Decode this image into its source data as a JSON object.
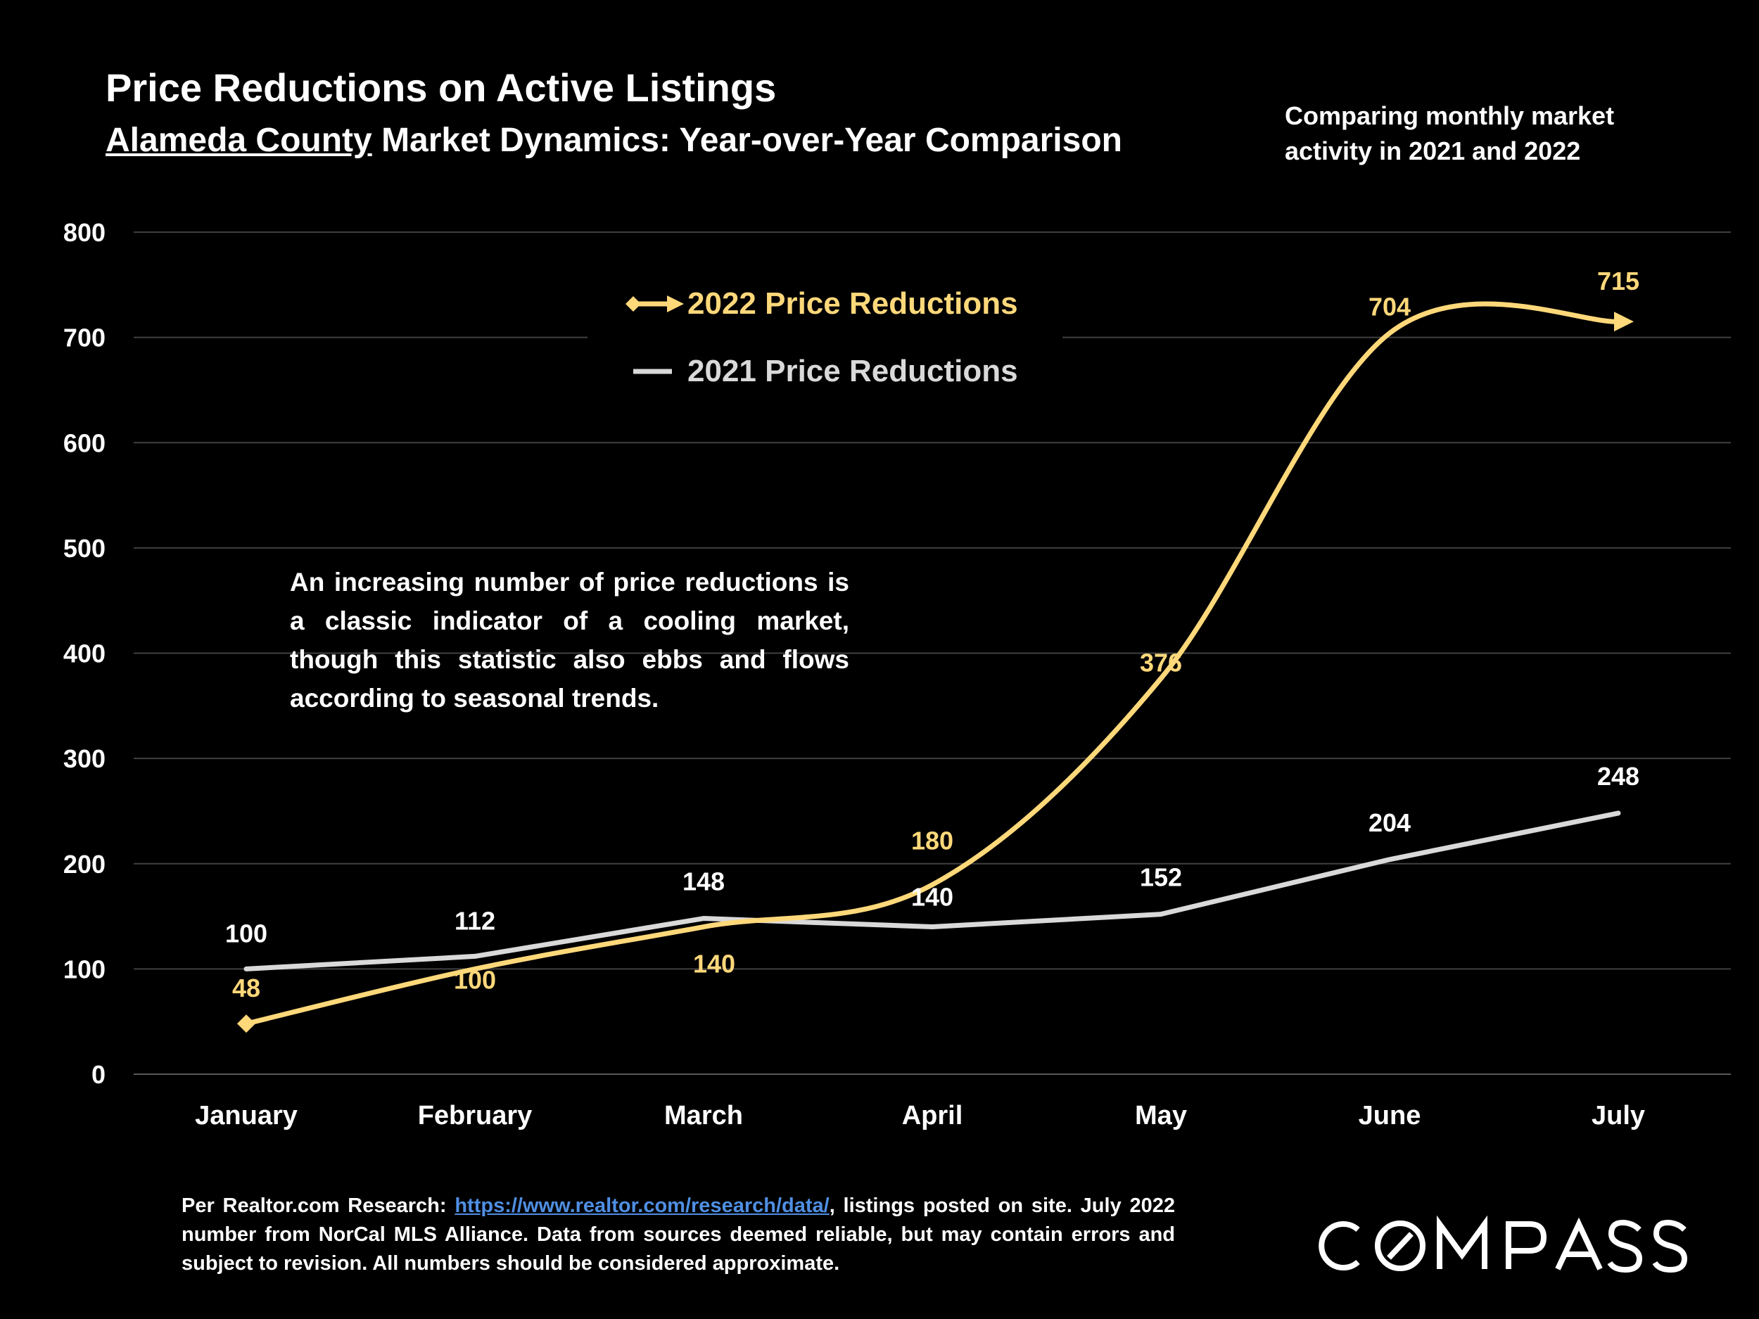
{
  "header": {
    "title": "Price Reductions on Active Listings",
    "subtitle_county": "Alameda County",
    "subtitle_rest": " Market Dynamics: Year-over-Year Comparison",
    "note": "Comparing monthly market activity in 2021 and 2022"
  },
  "annotation": "An increasing number of price reductions is a classic indicator of a cooling market, though this statistic also ebbs and flows according to seasonal trends.",
  "footer": {
    "prefix": "Per Realtor.com Research: ",
    "link": "https://www.realtor.com/research/data/",
    "suffix": ", listings posted on site. July 2022 number from NorCal MLS Alliance. Data from sources deemed reliable, but may contain errors and subject to revision. All numbers should be considered approximate."
  },
  "logo": {
    "text": "COMPASS"
  },
  "colors": {
    "series_2022": "#ffd87a",
    "series_2021": "#d9d9d9",
    "gridline": "#404040",
    "link": "#4f8fe3"
  },
  "chart_data": {
    "type": "line",
    "categories": [
      "January",
      "February",
      "March",
      "April",
      "May",
      "June",
      "July"
    ],
    "ylim": [
      0,
      800
    ],
    "yticks": [
      0,
      100,
      200,
      300,
      400,
      500,
      600,
      700,
      800
    ],
    "grid": true,
    "legend_position": "top-center",
    "series": [
      {
        "name": "2022 Price Reductions",
        "values": [
          48,
          100,
          140,
          180,
          376,
          704,
          715
        ],
        "color": "#ffd87a",
        "markers": "diamond-start-arrow-end",
        "smooth": true
      },
      {
        "name": "2021 Price Reductions",
        "values": [
          100,
          112,
          148,
          140,
          152,
          204,
          248
        ],
        "color": "#d9d9d9",
        "smooth": false
      }
    ]
  }
}
